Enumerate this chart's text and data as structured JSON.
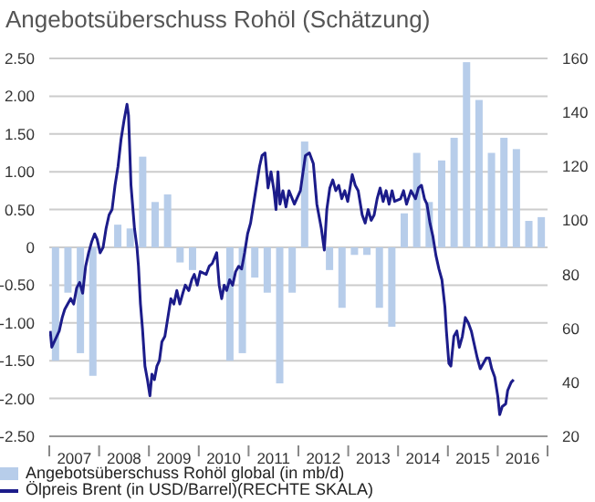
{
  "chart_data": {
    "type": "bar",
    "title": "Angebotsüberschuss Rohöl (Schätzung)",
    "xlim": [
      2007,
      2017
    ],
    "xticks": [
      {
        "value": 2007,
        "label": null
      },
      {
        "value": 2007.5,
        "label": "2007"
      },
      {
        "value": 2008,
        "label": null
      },
      {
        "value": 2008.5,
        "label": "2008"
      },
      {
        "value": 2009,
        "label": null
      },
      {
        "value": 2009.5,
        "label": "2009"
      },
      {
        "value": 2010,
        "label": null
      },
      {
        "value": 2010.5,
        "label": "2010"
      },
      {
        "value": 2011,
        "label": null
      },
      {
        "value": 2011.5,
        "label": "2011"
      },
      {
        "value": 2012,
        "label": null
      },
      {
        "value": 2012.5,
        "label": "2012"
      },
      {
        "value": 2013,
        "label": null
      },
      {
        "value": 2013.5,
        "label": "2013"
      },
      {
        "value": 2014,
        "label": null
      },
      {
        "value": 2014.5,
        "label": "2014"
      },
      {
        "value": 2015,
        "label": null
      },
      {
        "value": 2015.5,
        "label": "2015"
      },
      {
        "value": 2016,
        "label": null
      },
      {
        "value": 2016.5,
        "label": "2016"
      },
      {
        "value": 2017,
        "label": null
      }
    ],
    "ylim": [
      -2.5,
      2.5
    ],
    "yticks": [
      {
        "value": -2.5,
        "label": "-2.50"
      },
      {
        "value": -2,
        "label": "-2.00"
      },
      {
        "value": -1.5,
        "label": "-1.50"
      },
      {
        "value": -1,
        "label": "-1.00"
      },
      {
        "value": -0.5,
        "label": "-0.50"
      },
      0,
      {
        "value": 0.5,
        "label": "0.50"
      },
      {
        "value": 1,
        "label": "1.00"
      },
      {
        "value": 1.5,
        "label": "1.50"
      },
      {
        "value": 2,
        "label": "2.00"
      },
      {
        "value": 2.5,
        "label": "2.50"
      }
    ],
    "y2lim": [
      20,
      160
    ],
    "y2ticks": [
      20,
      40,
      60,
      80,
      100,
      120,
      140,
      160
    ],
    "grid": "y",
    "legend": "bottom left",
    "series": [
      {
        "name": "Angebotsüberschuss Rohöl global (in mb/d)",
        "color": "#b7cdea",
        "x": [
          2007.125,
          2007.375,
          2007.625,
          2007.875,
          2008.125,
          2008.375,
          2008.625,
          2008.875,
          2009.125,
          2009.375,
          2009.625,
          2009.875,
          2010.125,
          2010.375,
          2010.625,
          2010.875,
          2011.125,
          2011.375,
          2011.625,
          2011.875,
          2012.125,
          2012.375,
          2012.625,
          2012.875,
          2013.125,
          2013.375,
          2013.625,
          2013.875,
          2014.125,
          2014.375,
          2014.625,
          2014.875,
          2015.125,
          2015.375,
          2015.625,
          2015.875,
          2016.125,
          2016.375,
          2016.625,
          2016.875
        ],
        "values": [
          -1.5,
          -0.6,
          -1.4,
          -1.7,
          null,
          0.3,
          0.25,
          1.2,
          0.6,
          0.7,
          -0.2,
          -0.3,
          null,
          null,
          -1.5,
          -1.4,
          -0.4,
          -0.6,
          -1.8,
          -0.6,
          1.4,
          null,
          -0.3,
          -0.8,
          -0.1,
          -0.1,
          -0.8,
          -1.05,
          0.45,
          1.25,
          0.6,
          1.15,
          1.45,
          2.45,
          1.95,
          1.25,
          1.45,
          1.3,
          0.35,
          0.4
        ]
      },
      {
        "type": "line",
        "axis": "y2",
        "name": "Ölpreis Brent (in USD/Barrel)(RECHTE SKALA)",
        "color": "#1c1c8a",
        "x": [
          2007.02,
          2007.05,
          2007.2,
          2007.26,
          2007.31,
          2007.37,
          2007.43,
          2007.49,
          2007.55,
          2007.61,
          2007.67,
          2007.73,
          2007.79,
          2007.85,
          2007.91,
          2007.96,
          2008.02,
          2008.08,
          2008.14,
          2008.2,
          2008.26,
          2008.32,
          2008.38,
          2008.44,
          2008.5,
          2008.56,
          2008.59,
          2008.64,
          2008.71,
          2008.76,
          2008.79,
          2008.83,
          2008.87,
          2008.92,
          2008.97,
          2009.02,
          2009.06,
          2009.11,
          2009.16,
          2009.21,
          2009.26,
          2009.32,
          2009.38,
          2009.44,
          2009.5,
          2009.56,
          2009.62,
          2009.68,
          2009.73,
          2009.8,
          2009.86,
          2009.91,
          2009.97,
          2010.03,
          2010.15,
          2010.21,
          2010.27,
          2010.36,
          2010.41,
          2010.46,
          2010.51,
          2010.56,
          2010.62,
          2010.68,
          2010.74,
          2010.8,
          2010.86,
          2010.92,
          2010.98,
          2011.04,
          2011.1,
          2011.16,
          2011.22,
          2011.27,
          2011.33,
          2011.39,
          2011.45,
          2011.51,
          2011.55,
          2011.59,
          2011.63,
          2011.69,
          2011.75,
          2011.81,
          2011.92,
          2012.04,
          2012.14,
          2012.22,
          2012.3,
          2012.37,
          2012.46,
          2012.52,
          2012.57,
          2012.63,
          2012.69,
          2012.75,
          2012.81,
          2012.87,
          2012.93,
          2012.99,
          2013.08,
          2013.14,
          2013.2,
          2013.28,
          2013.34,
          2013.4,
          2013.46,
          2013.52,
          2013.58,
          2013.64,
          2013.7,
          2013.76,
          2013.82,
          2013.88,
          2013.93,
          2014.05,
          2014.11,
          2014.17,
          2014.26,
          2014.35,
          2014.41,
          2014.47,
          2014.53,
          2014.58,
          2014.64,
          2014.7,
          2014.76,
          2014.82,
          2014.88,
          2014.94,
          2014.97,
          2015.02,
          2015.06,
          2015.12,
          2015.18,
          2015.23,
          2015.29,
          2015.35,
          2015.41,
          2015.47,
          2015.53,
          2015.59,
          2015.65,
          2015.71,
          2015.77,
          2015.83,
          2015.88,
          2015.94,
          2016,
          2016.04,
          2016.09,
          2016.16,
          2016.2,
          2016.27,
          2016.32
        ],
        "values": [
          59,
          53,
          59,
          64,
          67,
          69,
          71,
          69,
          75,
          77,
          73,
          83,
          88,
          92,
          95,
          93,
          88,
          90,
          97,
          102,
          104,
          113,
          120,
          130,
          137,
          143,
          139,
          113,
          97,
          90,
          83,
          69,
          60,
          46,
          41,
          35,
          43,
          41,
          46,
          48,
          55,
          57,
          64,
          71,
          69,
          74,
          69,
          73,
          76,
          74,
          78,
          80,
          76,
          81,
          80,
          83,
          84,
          88,
          76,
          71,
          76,
          74,
          78,
          76,
          81,
          83,
          82,
          88,
          95,
          99,
          106,
          113,
          120,
          124,
          125,
          112,
          118,
          111,
          104,
          118,
          106,
          111,
          105,
          111,
          106,
          111,
          124,
          125,
          121,
          106,
          97,
          89,
          104,
          112,
          115,
          111,
          113,
          108,
          111,
          107,
          117,
          113,
          111,
          102,
          99,
          104,
          100,
          102,
          108,
          112,
          107,
          111,
          106,
          111,
          107,
          108,
          111,
          106,
          111,
          108,
          112,
          113,
          108,
          106,
          99,
          94,
          87,
          82,
          78,
          68,
          59,
          47,
          46,
          57,
          59,
          53,
          57,
          64,
          62,
          59,
          54,
          49,
          45,
          47,
          49,
          49,
          45,
          42,
          35,
          28,
          31,
          32,
          37,
          40,
          41
        ]
      }
    ]
  }
}
